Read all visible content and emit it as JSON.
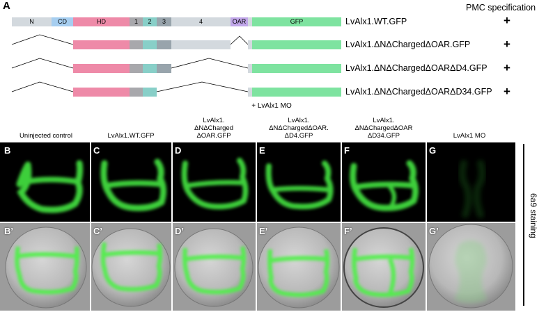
{
  "panel_a": {
    "letter": "A",
    "spec_header": "PMC specification",
    "domains": {
      "n": "N",
      "cd": "CD",
      "hd": "HD",
      "d1": "1",
      "d2": "2",
      "d3": "3",
      "d4": "4",
      "oar": "OAR",
      "gfp": "GFP"
    },
    "constructs": [
      {
        "label": "LvAlx1.WT.GFP",
        "spec": "+"
      },
      {
        "label": "LvAlx1.ΔNΔChargedΔOAR.GFP",
        "spec": "+"
      },
      {
        "label": "LvAlx1.ΔNΔChargedΔOARΔD4.GFP",
        "spec": "+"
      },
      {
        "label": "LvAlx1.ΔNΔChargedΔOARΔD34.GFP",
        "spec": "+"
      }
    ],
    "colors": {
      "n": "#d3d9de",
      "cd": "#a6cef0",
      "hd": "#ee8aa8",
      "d1": "#a8a8ac",
      "d2": "#88cfc8",
      "d3": "#98a4ac",
      "d4": "#d3d9de",
      "oar": "#c0a6e8",
      "gfp": "#7ee3a0"
    }
  },
  "mo_label": "+ LvAlx1 MO",
  "columns": [
    {
      "heading": [
        "Uninjected control"
      ],
      "top": "B",
      "bottom": "B’"
    },
    {
      "heading": [
        "LvAlx1.WT.GFP"
      ],
      "top": "C",
      "bottom": "C’"
    },
    {
      "heading": [
        "LvAlx1.",
        "ΔNΔCharged",
        "ΔOAR.GFP"
      ],
      "top": "D",
      "bottom": "D’"
    },
    {
      "heading": [
        "LvAlx1.",
        "ΔNΔChargedΔOAR.",
        "ΔD4.GFP"
      ],
      "top": "E",
      "bottom": "E’"
    },
    {
      "heading": [
        "LvAlx1.",
        "ΔNΔChargedΔOAR",
        "ΔD34.GFP"
      ],
      "top": "F",
      "bottom": "F’"
    },
    {
      "heading": [
        "LvAlx1 MO"
      ],
      "top": "G",
      "bottom": "G’"
    }
  ],
  "side_label": "6a9 staining"
}
